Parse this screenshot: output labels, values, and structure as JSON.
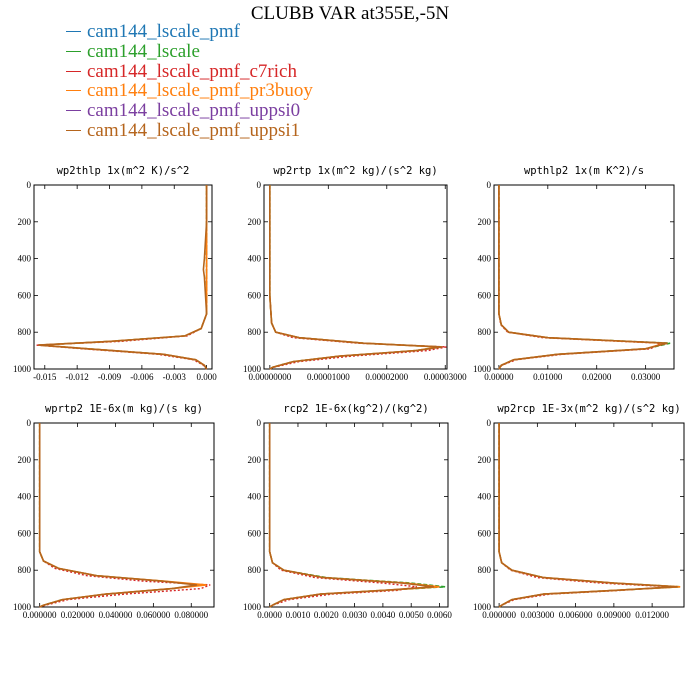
{
  "title": "CLUBB VAR at355E,-5N",
  "legend": [
    {
      "name": "cam144_lscale_pmf",
      "color": "#1f77b4"
    },
    {
      "name": "cam144_lscale",
      "color": "#2ca02c"
    },
    {
      "name": "cam144_lscale_pmf_c7rich",
      "color": "#d62728"
    },
    {
      "name": "cam144_lscale_pmf_pr3buoy",
      "color": "#ff7f0e"
    },
    {
      "name": "cam144_lscale_pmf_uppsi0",
      "color": "#7b3fa0"
    },
    {
      "name": "cam144_lscale_pmf_uppsi1",
      "color": "#b5651d"
    }
  ],
  "chart_data": [
    {
      "type": "line",
      "title": "wp2thlp  1x(m^2 K)/s^2",
      "xlim": [
        -0.016,
        0.0005
      ],
      "xticks": [
        "-0.015",
        "-0.012",
        "-0.009",
        "-0.006",
        "-0.003",
        "0.000"
      ],
      "xtick_values": [
        -0.015,
        -0.012,
        -0.009,
        -0.006,
        -0.003,
        0.0
      ],
      "ylim": [
        1000,
        0
      ],
      "yticks": [
        "0",
        "200",
        "400",
        "600",
        "800",
        "1000"
      ],
      "levels": [
        0,
        200,
        400,
        460,
        500,
        700,
        780,
        820,
        850,
        870,
        890,
        920,
        950,
        980,
        1000
      ],
      "series": [
        {
          "color": "#2ca02c",
          "values": [
            0,
            0,
            0,
            0,
            0,
            0,
            -0.0005,
            -0.002,
            -0.009,
            -0.0155,
            -0.011,
            -0.004,
            -0.001,
            -0.0002,
            0
          ]
        },
        {
          "color": "#d62728",
          "values": [
            0,
            0,
            0,
            0,
            0,
            0,
            -0.0005,
            -0.0018,
            -0.008,
            -0.0158,
            -0.0115,
            -0.0045,
            -0.0012,
            -0.0003,
            0
          ]
        },
        {
          "color": "#ff7f0e",
          "values": [
            0,
            0,
            0,
            0,
            0,
            0,
            -0.0005,
            -0.002,
            -0.009,
            -0.0155,
            -0.011,
            -0.004,
            -0.001,
            -0.0002,
            0
          ]
        },
        {
          "color": "#b5651d",
          "values": [
            0,
            0,
            -0.0002,
            -0.0003,
            -0.0002,
            0,
            -0.0005,
            -0.002,
            -0.009,
            -0.0156,
            -0.011,
            -0.004,
            -0.001,
            -0.0002,
            0
          ]
        }
      ]
    },
    {
      "type": "line",
      "title": "wp2rtp  1x(m^2 kg)/(s^2 kg)",
      "xlim": [
        -1e-06,
        3.03e-05
      ],
      "xticks": [
        "0.00000000",
        "0.00001000",
        "0.00002000",
        "0.00003000"
      ],
      "xtick_values": [
        0.0,
        1e-05,
        2e-05,
        3e-05
      ],
      "ylim": [
        1000,
        0
      ],
      "yticks": [
        "0",
        "200",
        "400",
        "600",
        "800",
        "1000"
      ],
      "levels": [
        0,
        200,
        400,
        600,
        750,
        800,
        830,
        860,
        880,
        900,
        930,
        960,
        990,
        1000
      ],
      "series": [
        {
          "color": "#2ca02c",
          "values": [
            0,
            0,
            0,
            0,
            3e-07,
            1e-06,
            5e-06,
            1.6e-05,
            2.9e-05,
            2.5e-05,
            1.2e-05,
            4e-06,
            5e-07,
            0
          ]
        },
        {
          "color": "#d62728",
          "values": [
            0,
            0,
            0,
            0,
            3e-07,
            1e-06,
            4e-06,
            1.5e-05,
            3.02e-05,
            2.7e-05,
            1.4e-05,
            5e-06,
            7e-07,
            0
          ]
        },
        {
          "color": "#ff7f0e",
          "values": [
            0,
            0,
            0,
            0,
            3e-07,
            1e-06,
            5e-06,
            1.6e-05,
            2.9e-05,
            2.5e-05,
            1.2e-05,
            4e-06,
            5e-07,
            0
          ]
        },
        {
          "color": "#b5651d",
          "values": [
            0,
            0,
            0,
            0,
            3e-07,
            1e-06,
            5e-06,
            1.6e-05,
            2.95e-05,
            2.5e-05,
            1.2e-05,
            4e-06,
            5e-07,
            0
          ]
        }
      ]
    },
    {
      "type": "line",
      "title": "wpthlp2  1x(m K^2)/s",
      "xlim": [
        -0.001,
        0.0358
      ],
      "xticks": [
        "0.00000",
        "0.01000",
        "0.02000",
        "0.03000"
      ],
      "xtick_values": [
        0.0,
        0.01,
        0.02,
        0.03
      ],
      "ylim": [
        1000,
        0
      ],
      "yticks": [
        "0",
        "200",
        "400",
        "600",
        "800",
        "1000"
      ],
      "levels": [
        0,
        200,
        400,
        600,
        700,
        760,
        800,
        830,
        860,
        890,
        920,
        950,
        980,
        1000
      ],
      "series": [
        {
          "color": "#2ca02c",
          "values": [
            0,
            0,
            0,
            0,
            0,
            0.0005,
            0.002,
            0.01,
            0.035,
            0.03,
            0.012,
            0.003,
            0.0005,
            0
          ]
        },
        {
          "color": "#d62728",
          "values": [
            0,
            0,
            0,
            0,
            0,
            0.0004,
            0.0018,
            0.009,
            0.033,
            0.031,
            0.013,
            0.0035,
            0.0006,
            0
          ]
        },
        {
          "color": "#ff7f0e",
          "values": [
            0,
            0,
            0,
            0,
            0,
            0.0005,
            0.002,
            0.01,
            0.034,
            0.03,
            0.012,
            0.003,
            0.0005,
            0
          ]
        },
        {
          "color": "#b5651d",
          "values": [
            0,
            0,
            0,
            0,
            0,
            0.0005,
            0.002,
            0.01,
            0.0345,
            0.03,
            0.012,
            0.003,
            0.0005,
            0
          ]
        }
      ]
    },
    {
      "type": "line",
      "title": "wprtp2  1E-6x(m kg)/(s kg)",
      "xlim": [
        -0.003,
        0.092
      ],
      "xticks": [
        "0.000000",
        "0.020000",
        "0.040000",
        "0.060000",
        "0.080000"
      ],
      "xtick_values": [
        0.0,
        0.02,
        0.04,
        0.06,
        0.08
      ],
      "ylim": [
        1000,
        0
      ],
      "yticks": [
        "0",
        "200",
        "400",
        "600",
        "800",
        "1000"
      ],
      "levels": [
        0,
        200,
        400,
        600,
        700,
        750,
        790,
        830,
        860,
        880,
        900,
        930,
        960,
        990,
        1000
      ],
      "series": [
        {
          "color": "#2ca02c",
          "values": [
            0,
            0,
            0,
            0,
            0,
            0.002,
            0.01,
            0.03,
            0.065,
            0.085,
            0.07,
            0.035,
            0.012,
            0.002,
            0
          ]
        },
        {
          "color": "#d62728",
          "values": [
            0,
            0,
            0,
            0,
            0,
            0.002,
            0.008,
            0.025,
            0.055,
            0.09,
            0.085,
            0.045,
            0.015,
            0.003,
            0
          ]
        },
        {
          "color": "#ff7f0e",
          "values": [
            0,
            0,
            0,
            0,
            0,
            0.002,
            0.01,
            0.03,
            0.066,
            0.088,
            0.07,
            0.035,
            0.012,
            0.002,
            0
          ]
        },
        {
          "color": "#b5651d",
          "values": [
            0,
            0,
            0,
            0,
            0,
            0.002,
            0.01,
            0.03,
            0.065,
            0.083,
            0.07,
            0.035,
            0.012,
            0.002,
            0
          ]
        }
      ]
    },
    {
      "type": "line",
      "title": "rcp2  1E-6x(kg^2)/(kg^2)",
      "xlim": [
        -0.0002,
        0.0063
      ],
      "xticks": [
        "0.0000",
        "0.0010",
        "0.0020",
        "0.0030",
        "0.0040",
        "0.0050",
        "0.0060"
      ],
      "xtick_values": [
        0.0,
        0.001,
        0.002,
        0.003,
        0.004,
        0.005,
        0.006
      ],
      "ylim": [
        1000,
        0
      ],
      "yticks": [
        "0",
        "200",
        "400",
        "600",
        "800",
        "1000"
      ],
      "levels": [
        0,
        200,
        400,
        600,
        700,
        760,
        800,
        840,
        870,
        890,
        910,
        930,
        960,
        990,
        1000
      ],
      "series": [
        {
          "color": "#2ca02c",
          "values": [
            0,
            0,
            0,
            0,
            0,
            0.0001,
            0.0005,
            0.002,
            0.005,
            0.0062,
            0.004,
            0.0018,
            0.0005,
            0.0001,
            0
          ]
        },
        {
          "color": "#d62728",
          "values": [
            0,
            0,
            0,
            0,
            0,
            0.0001,
            0.0004,
            0.0016,
            0.004,
            0.0052,
            0.0045,
            0.0022,
            0.0007,
            0.0001,
            0
          ]
        },
        {
          "color": "#ff7f0e",
          "values": [
            0,
            0,
            0,
            0,
            0,
            0.0001,
            0.0005,
            0.0019,
            0.0048,
            0.006,
            0.004,
            0.0018,
            0.0005,
            0.0001,
            0
          ]
        },
        {
          "color": "#b5651d",
          "values": [
            0,
            0,
            0,
            0,
            0,
            0.0001,
            0.0005,
            0.0019,
            0.0047,
            0.0058,
            0.004,
            0.0018,
            0.0005,
            0.0001,
            0
          ]
        }
      ]
    },
    {
      "type": "line",
      "title": "wp2rcp  1E-3x(m^2 kg)/(s^2 kg)",
      "xlim": [
        -0.0004,
        0.0145
      ],
      "xticks": [
        "0.000000",
        "0.003000",
        "0.006000",
        "0.009000",
        "0.012000"
      ],
      "xtick_values": [
        0.0,
        0.003,
        0.006,
        0.009,
        0.012
      ],
      "ylim": [
        1000,
        0
      ],
      "yticks": [
        "0",
        "200",
        "400",
        "600",
        "800",
        "1000"
      ],
      "levels": [
        0,
        200,
        400,
        600,
        700,
        760,
        800,
        840,
        870,
        890,
        910,
        930,
        960,
        990,
        1000
      ],
      "series": [
        {
          "color": "#2ca02c",
          "values": [
            0,
            0,
            0,
            0,
            0,
            0.0002,
            0.001,
            0.0035,
            0.009,
            0.0142,
            0.009,
            0.0035,
            0.001,
            0.0002,
            0
          ]
        },
        {
          "color": "#d62728",
          "values": [
            0,
            0,
            0,
            0,
            0,
            0.0002,
            0.0009,
            0.003,
            0.008,
            0.0135,
            0.0095,
            0.004,
            0.0012,
            0.0002,
            0
          ]
        },
        {
          "color": "#ff7f0e",
          "values": [
            0,
            0,
            0,
            0,
            0,
            0.0002,
            0.001,
            0.0035,
            0.009,
            0.0142,
            0.009,
            0.0035,
            0.001,
            0.0002,
            0
          ]
        },
        {
          "color": "#b5651d",
          "values": [
            0,
            0,
            0,
            0,
            0,
            0.0002,
            0.001,
            0.0035,
            0.009,
            0.014,
            0.009,
            0.0035,
            0.001,
            0.0002,
            0
          ]
        }
      ]
    }
  ]
}
